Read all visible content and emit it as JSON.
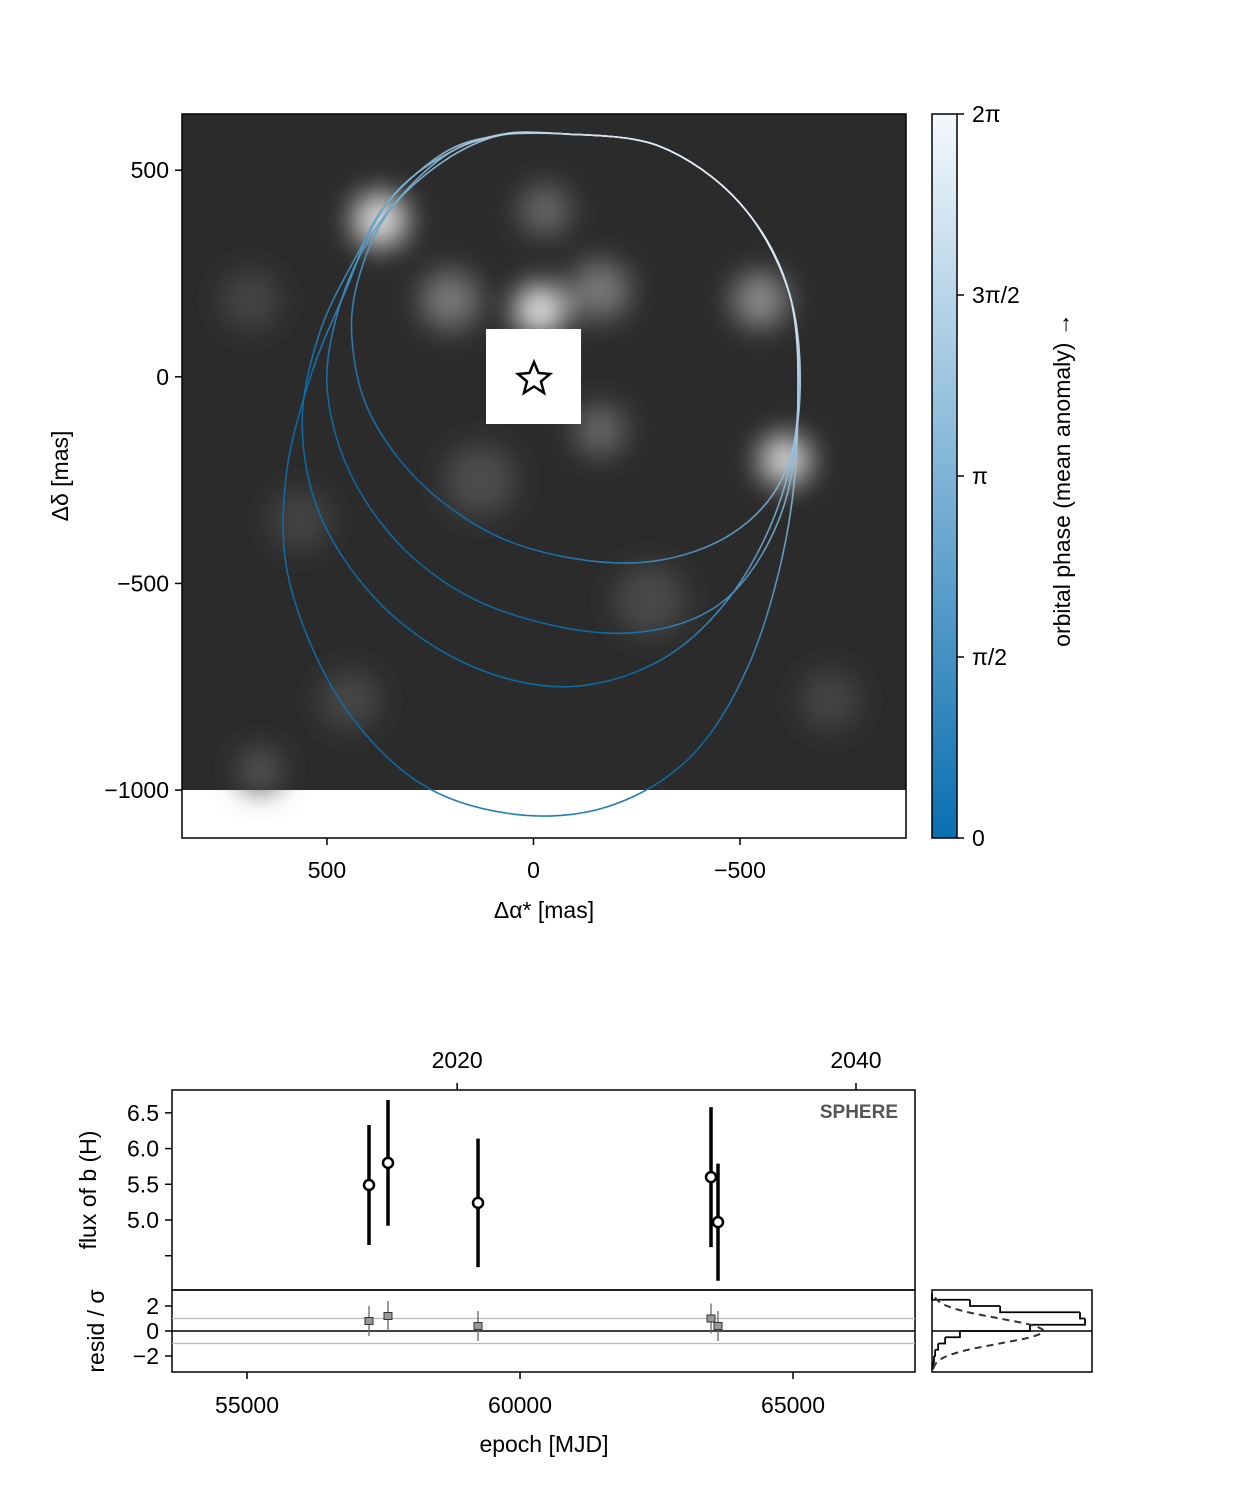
{
  "chart_data": [
    {
      "type": "orbit",
      "xlabel": "Δα* [mas]",
      "ylabel": "Δδ [mas]",
      "xlim": [
        851,
        -902
      ],
      "ylim": [
        -1116,
        636
      ],
      "xticks": [
        500,
        0,
        {
          "value": -500,
          "label": "−500"
        }
      ],
      "yticks": [
        500,
        0,
        {
          "value": -500,
          "label": "−500"
        },
        {
          "value": -1000,
          "label": "−1000"
        }
      ],
      "series": [
        {
          "x": [
            -60,
            -300,
            -500,
            -620,
            -645,
            -600,
            -480,
            -300,
            -100,
            100,
            280,
            400,
            440,
            420,
            350,
            220,
            80,
            -60
          ],
          "values": [
            589,
            560,
            420,
            200,
            -50,
            -250,
            -380,
            -445,
            -440,
            -380,
            -250,
            -80,
            100,
            250,
            400,
            520,
            585,
            589
          ]
        },
        {
          "x": [
            -60,
            -300,
            -500,
            -620,
            -640,
            -610,
            -520,
            -400,
            -230,
            -40,
            160,
            330,
            450,
            500,
            470,
            400,
            300,
            190,
            60,
            -60
          ],
          "values": [
            589,
            560,
            420,
            200,
            -70,
            -300,
            -480,
            -580,
            -620,
            -600,
            -530,
            -400,
            -220,
            -20,
            170,
            330,
            460,
            550,
            588,
            589
          ]
        },
        {
          "x": [
            -60,
            -300,
            -500,
            -620,
            -640,
            -590,
            -470,
            -300,
            -80,
            150,
            360,
            510,
            560,
            520,
            430,
            330,
            190,
            60,
            -60
          ],
          "values": [
            589,
            560,
            420,
            200,
            -80,
            -320,
            -540,
            -690,
            -750,
            -700,
            -560,
            -350,
            -120,
            100,
            290,
            450,
            550,
            590,
            589
          ]
        },
        {
          "x": [
            -60,
            -300,
            -500,
            -620,
            -640,
            -610,
            -520,
            -380,
            -180,
            50,
            280,
            470,
            590,
            600,
            540,
            450,
            370,
            220,
            80,
            -60
          ],
          "values": [
            589,
            560,
            420,
            200,
            -100,
            -400,
            -700,
            -920,
            -1040,
            -1058,
            -980,
            -780,
            -500,
            -250,
            0,
            220,
            400,
            540,
            585,
            589
          ]
        }
      ],
      "colorbar": {
        "label": "orbital phase (mean anomaly) →",
        "lim": [
          0,
          6.2832
        ],
        "colors": [
          "#0a6fb0",
          "#f4f8fc"
        ],
        "ticks": [
          0,
          {
            "value": 1.5708,
            "label": "π/2"
          },
          {
            "value": 3.1416,
            "label": "π"
          },
          {
            "value": 4.7124,
            "label": "3π/2"
          },
          {
            "value": 6.2832,
            "label": "2π"
          }
        ]
      }
    },
    {
      "type": "errorbar",
      "ylabel": "flux of b (H)",
      "annotation": "SPHERE",
      "xlim": [
        53626,
        67234
      ],
      "ylim": [
        4.02,
        6.82
      ],
      "x2lim": [
        2005.7,
        2042.96
      ],
      "x2ticks": [
        2020,
        2040
      ],
      "yticks": [
        {
          "value": 4.5,
          "label": null
        },
        {
          "value": 5,
          "label": "5.0"
        },
        5.5,
        {
          "value": 6,
          "label": "6.0"
        },
        6.5
      ],
      "x": [
        57234,
        57582,
        59231,
        63498,
        63626
      ],
      "values": [
        5.49,
        5.8,
        5.24,
        5.6,
        4.97
      ],
      "errors": [
        0.84,
        0.88,
        0.9,
        0.98,
        0.82
      ]
    },
    {
      "type": "residual",
      "ylabel": "resid / σ",
      "xlabel": "epoch [MJD]",
      "xlim": [
        53626,
        67234
      ],
      "ylim": [
        -3.28,
        3.28
      ],
      "xticks": [
        55000,
        60000,
        65000
      ],
      "yticks": [
        2,
        0,
        {
          "value": -2,
          "label": "−2"
        }
      ],
      "baseline": 0,
      "reference_lines": [
        -1,
        1
      ],
      "x": [
        57234,
        57582,
        59231,
        63498,
        63626
      ],
      "values": [
        0.8,
        1.2,
        0.4,
        1.0,
        0.4
      ],
      "errors": [
        1.2,
        1.2,
        1.2,
        1.2,
        1.2
      ]
    },
    {
      "type": "histogram",
      "ylim": [
        -3.28,
        3.28
      ],
      "xlim": [
        0,
        0.573
      ],
      "baseline": 0,
      "bins": [
        -3,
        -2.5,
        -2,
        -1.5,
        -1,
        -0.5,
        0,
        0.5,
        1,
        1.5,
        2,
        2.5,
        3
      ],
      "counts": [
        0.004,
        0.007,
        0.011,
        0.022,
        0.047,
        0.1,
        0.351,
        0.548,
        0.53,
        0.244,
        0.136,
        0
      ],
      "curve": {
        "y": [
          -3,
          -2.5,
          -2,
          -1.5,
          -1,
          -0.5,
          0,
          0.5,
          1,
          1.5,
          2,
          2.5,
          3
        ],
        "density": [
          0.0044,
          0.0175,
          0.054,
          0.1295,
          0.242,
          0.352,
          0.399,
          0.352,
          0.242,
          0.1295,
          0.054,
          0.0175,
          0.0044
        ]
      }
    }
  ]
}
